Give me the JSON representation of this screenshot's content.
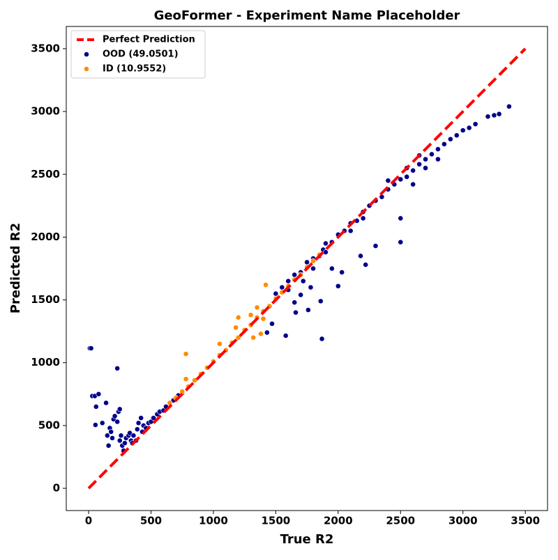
{
  "chart_data": {
    "type": "scatter",
    "title": "GeoFormer - Experiment Name Placeholder",
    "xlabel": "True R2",
    "ylabel": "Predicted R2",
    "xlim": [
      -179,
      3678
    ],
    "ylim": [
      -177,
      3677
    ],
    "xticks": [
      0,
      500,
      1000,
      1500,
      2000,
      2500,
      3000,
      3500
    ],
    "yticks": [
      0,
      500,
      1000,
      1500,
      2000,
      2500,
      3000,
      3500
    ],
    "grid": false,
    "legend": "upper left",
    "series": [
      {
        "name": "Perfect Prediction",
        "type": "line",
        "linestyle": "dashed",
        "color": "#ff0000",
        "x": [
          0,
          3500
        ],
        "y": [
          0,
          3500
        ]
      },
      {
        "name": "OOD (49.0501)",
        "type": "scatter",
        "color": "#00008b",
        "x": [
          10,
          20,
          30,
          50,
          60,
          80,
          55,
          110,
          140,
          150,
          160,
          170,
          180,
          190,
          200,
          210,
          230,
          240,
          250,
          230,
          250,
          260,
          270,
          280,
          290,
          300,
          320,
          330,
          340,
          350,
          360,
          380,
          390,
          400,
          420,
          430,
          440,
          460,
          480,
          500,
          520,
          550,
          570,
          600,
          620,
          650,
          680,
          700,
          720,
          750,
          1500,
          1550,
          1600,
          1650,
          1700,
          1720,
          1750,
          1800,
          1850,
          1880,
          1900,
          1950,
          2000,
          2050,
          2100,
          2150,
          2200,
          2250,
          2300,
          2350,
          2400,
          2450,
          2500,
          2550,
          2600,
          2650,
          2700,
          2750,
          2800,
          2850,
          2900,
          2950,
          3000,
          3050,
          3100,
          3200,
          3250,
          3290,
          3370,
          1580,
          1870,
          1660,
          1760,
          1860,
          2000,
          2030,
          2500,
          2500,
          2300,
          2180,
          2220,
          1650,
          1700,
          1470,
          1430,
          1780,
          1950,
          2600,
          2700,
          2800,
          1600,
          1800,
          1900,
          2100,
          2200,
          2400,
          2550,
          2650
        ],
        "y": [
          1115,
          1115,
          735,
          735,
          650,
          750,
          505,
          520,
          680,
          420,
          340,
          480,
          450,
          400,
          550,
          575,
          955,
          610,
          630,
          530,
          380,
          420,
          340,
          300,
          360,
          400,
          420,
          440,
          380,
          360,
          420,
          380,
          470,
          520,
          560,
          450,
          500,
          480,
          520,
          530,
          560,
          590,
          610,
          620,
          650,
          680,
          700,
          720,
          740,
          760,
          1550,
          1600,
          1580,
          1700,
          1720,
          1650,
          1800,
          1830,
          1850,
          1900,
          1880,
          1960,
          2020,
          2050,
          2110,
          2130,
          2200,
          2250,
          2290,
          2320,
          2380,
          2420,
          2460,
          2480,
          2530,
          2580,
          2620,
          2660,
          2700,
          2740,
          2780,
          2810,
          2850,
          2870,
          2900,
          2960,
          2970,
          2980,
          3040,
          1215,
          1190,
          1400,
          1420,
          1490,
          1610,
          1720,
          1960,
          2150,
          1930,
          1850,
          1780,
          1480,
          1540,
          1310,
          1240,
          1600,
          1750,
          2420,
          2550,
          2620,
          1650,
          1750,
          1950,
          2050,
          2150,
          2450,
          2550,
          2650
        ]
      },
      {
        "name": "ID (10.9552)",
        "type": "scatter",
        "color": "#ff8c00",
        "x": [
          650,
          700,
          750,
          780,
          780,
          800,
          850,
          900,
          950,
          1000,
          1050,
          1050,
          1100,
          1150,
          1180,
          1200,
          1200,
          1250,
          1300,
          1320,
          1350,
          1380,
          1400,
          1420,
          1450,
          1500,
          1550,
          1600,
          1650,
          1700,
          1750,
          1800,
          1850,
          1350,
          1400,
          1300
        ],
        "y": [
          680,
          720,
          770,
          1070,
          870,
          810,
          860,
          910,
          960,
          1010,
          1060,
          1150,
          1100,
          1160,
          1280,
          1200,
          1360,
          1260,
          1300,
          1200,
          1360,
          1230,
          1410,
          1620,
          1450,
          1510,
          1560,
          1610,
          1660,
          1700,
          1760,
          1810,
          1860,
          1440,
          1350,
          1380
        ]
      }
    ]
  }
}
